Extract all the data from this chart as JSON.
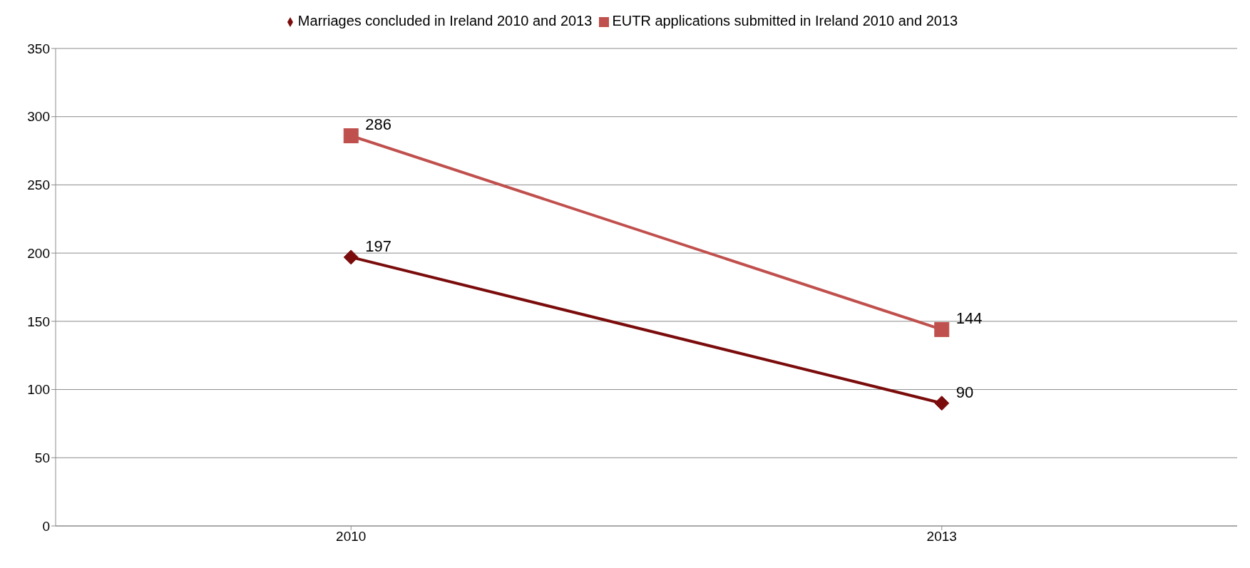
{
  "chart_data": {
    "type": "line",
    "categories": [
      "2010",
      "2013"
    ],
    "series": [
      {
        "name": "Marriages concluded in Ireland 2010 and 2013",
        "color": "#7b0c0c",
        "values": [
          197,
          90
        ],
        "marker": "diamond"
      },
      {
        "name": "EUTR applications submitted in Ireland 2010 and 2013",
        "color": "#c0504d",
        "values": [
          286,
          144
        ],
        "marker": "square"
      }
    ],
    "ylim": [
      0,
      350
    ],
    "yticks": [
      0,
      50,
      100,
      150,
      200,
      250,
      300,
      350
    ],
    "grid": "y",
    "legend": "top",
    "data_labels": true
  }
}
